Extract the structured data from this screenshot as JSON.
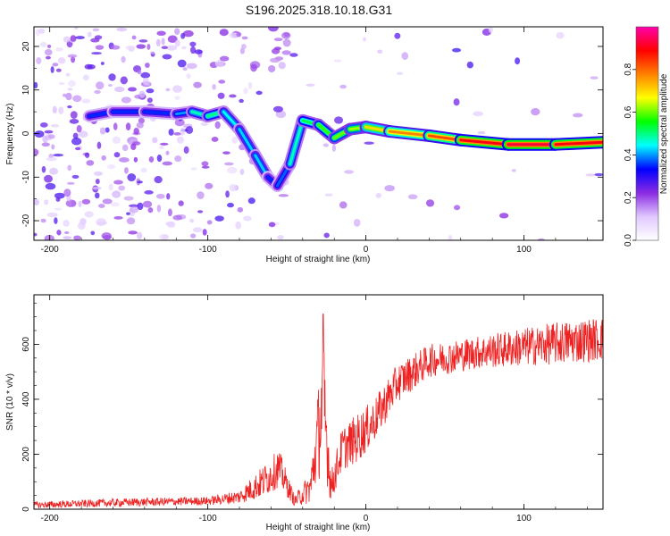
{
  "figure_title": "S196.2025.318.10.18.G31",
  "chart_data": [
    {
      "type": "heatmap",
      "title": "S196.2025.318.10.18.G31",
      "xlabel": "Height of straight line (km)",
      "ylabel": "Frequency (Hz)",
      "xlim": [
        -210,
        150
      ],
      "ylim": [
        -24.5,
        24.5
      ],
      "xticks": [
        -200,
        -100,
        0,
        100
      ],
      "yticks": [
        -20,
        -10,
        0,
        10,
        20
      ],
      "colorbar": {
        "label": "Normalized spectral amplitude",
        "range": [
          0,
          1
        ],
        "ticks": [
          "0.0",
          "0.2",
          "0.4",
          "0.6",
          "0.8"
        ],
        "colors": [
          "#ffffff",
          "#e0c8ff",
          "#8a2be2",
          "#0000ff",
          "#00ffff",
          "#00ff00",
          "#ffff00",
          "#ff8000",
          "#ff0000",
          "#ff00aa"
        ]
      },
      "ridge": [
        {
          "x": -175,
          "y": 4,
          "amp": 0.35
        },
        {
          "x": -160,
          "y": 5,
          "amp": 0.35
        },
        {
          "x": -140,
          "y": 5,
          "amp": 0.35
        },
        {
          "x": -120,
          "y": 4.5,
          "amp": 0.35
        },
        {
          "x": -110,
          "y": 5,
          "amp": 0.45
        },
        {
          "x": -100,
          "y": 4,
          "amp": 0.5
        },
        {
          "x": -90,
          "y": 5,
          "amp": 0.5
        },
        {
          "x": -80,
          "y": 1,
          "amp": 0.4
        },
        {
          "x": -70,
          "y": -5,
          "amp": 0.45
        },
        {
          "x": -62,
          "y": -10,
          "amp": 0.4
        },
        {
          "x": -56,
          "y": -12,
          "amp": 0.3
        },
        {
          "x": -48,
          "y": -7,
          "amp": 0.45
        },
        {
          "x": -40,
          "y": 3,
          "amp": 0.5
        },
        {
          "x": -30,
          "y": 2,
          "amp": 0.55
        },
        {
          "x": -20,
          "y": -1,
          "amp": 0.6
        },
        {
          "x": -10,
          "y": 1,
          "amp": 0.6
        },
        {
          "x": 0,
          "y": 1.5,
          "amp": 0.65
        },
        {
          "x": 15,
          "y": 0.5,
          "amp": 0.75
        },
        {
          "x": 40,
          "y": -0.5,
          "amp": 0.8
        },
        {
          "x": 60,
          "y": -1.5,
          "amp": 0.85
        },
        {
          "x": 90,
          "y": -2.5,
          "amp": 0.95
        },
        {
          "x": 120,
          "y": -2.5,
          "amp": 0.9
        },
        {
          "x": 150,
          "y": -2,
          "amp": 0.9
        }
      ]
    },
    {
      "type": "line",
      "xlabel": "Height of straight line (km)",
      "ylabel": "SNR (10 * v/v)",
      "xlim": [
        -210,
        150
      ],
      "ylim": [
        0,
        780
      ],
      "xticks": [
        -200,
        -100,
        0,
        100
      ],
      "yticks": [
        0,
        200,
        400,
        600
      ],
      "series_color": "#ee2222",
      "envelope": [
        {
          "x": -210,
          "base": 15,
          "noise": 12
        },
        {
          "x": -150,
          "base": 25,
          "noise": 15
        },
        {
          "x": -100,
          "base": 30,
          "noise": 15
        },
        {
          "x": -80,
          "base": 45,
          "noise": 25
        },
        {
          "x": -65,
          "base": 100,
          "noise": 60
        },
        {
          "x": -55,
          "base": 150,
          "noise": 70
        },
        {
          "x": -45,
          "base": 30,
          "noise": 20
        },
        {
          "x": -35,
          "base": 80,
          "noise": 60
        },
        {
          "x": -27,
          "base": 400,
          "noise": 250
        },
        {
          "x": -22,
          "base": 80,
          "noise": 60
        },
        {
          "x": -15,
          "base": 220,
          "noise": 80
        },
        {
          "x": -5,
          "base": 260,
          "noise": 90
        },
        {
          "x": 5,
          "base": 320,
          "noise": 80
        },
        {
          "x": 20,
          "base": 460,
          "noise": 70
        },
        {
          "x": 40,
          "base": 540,
          "noise": 60
        },
        {
          "x": 70,
          "base": 570,
          "noise": 60
        },
        {
          "x": 100,
          "base": 590,
          "noise": 70
        },
        {
          "x": 130,
          "base": 610,
          "noise": 80
        },
        {
          "x": 150,
          "base": 620,
          "noise": 80
        }
      ],
      "peak": {
        "x": -27,
        "y": 710
      }
    }
  ]
}
